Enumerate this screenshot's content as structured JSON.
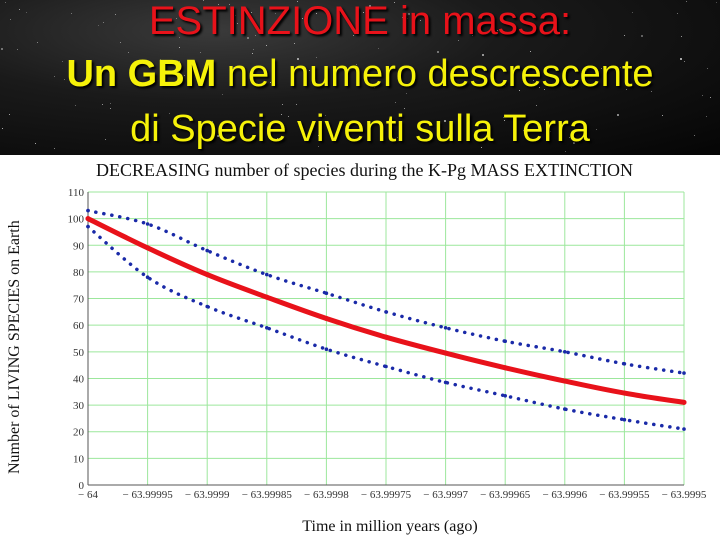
{
  "slide": {
    "title_line1": "ESTINZIONE in massa:",
    "title_line2_bold": "Un GBM",
    "title_line2_rest": " nel numero descrescente",
    "title_line3": "di Specie viventi sulla Terra",
    "colors": {
      "title_red": "#e8121a",
      "title_yellow": "#f6f209",
      "background": "#000000"
    }
  },
  "chart_data": {
    "type": "line",
    "title": "DECREASING number of species during the K-Pg MASS EXTINCTION",
    "xlabel": "Time in million years (ago)",
    "ylabel": "Number of LIVING SPECIES on Earth",
    "xlim": [
      -64,
      -63.9995
    ],
    "ylim": [
      0,
      110
    ],
    "y_ticks": [
      0,
      10,
      20,
      30,
      40,
      50,
      60,
      70,
      80,
      90,
      100,
      110
    ],
    "x_tick_labels": [
      "− 64",
      "− 63.99995",
      "− 63.9999",
      "− 63.99985",
      "− 63.9998",
      "− 63.99975",
      "− 63.9997",
      "− 63.99965",
      "− 63.9996",
      "− 63.99955",
      "− 63.9995"
    ],
    "grid": true,
    "grid_color": "#9ce79c",
    "series": [
      {
        "style": "solid",
        "color": "#e8121a",
        "x": [
          -64,
          -63.99995,
          -63.9999,
          -63.99985,
          -63.9998,
          -63.99975,
          -63.9997,
          -63.99965,
          -63.9996,
          -63.99955,
          -63.9995
        ],
        "values": [
          100,
          89,
          79,
          70.5,
          62.5,
          55.5,
          49.5,
          44,
          39,
          34.5,
          31
        ]
      },
      {
        "style": "dotted",
        "color": "#1a2aa8",
        "x": [
          -64,
          -63.99995,
          -63.9999,
          -63.99985,
          -63.9998,
          -63.99975,
          -63.9997,
          -63.99965,
          -63.9996,
          -63.99955,
          -63.9995
        ],
        "values": [
          103,
          98,
          88,
          79,
          72,
          65,
          59,
          54,
          50,
          45.5,
          42
        ]
      },
      {
        "style": "dotted",
        "color": "#1a2aa8",
        "x": [
          -64,
          -63.99995,
          -63.9999,
          -63.99985,
          -63.9998,
          -63.99975,
          -63.9997,
          -63.99965,
          -63.9996,
          -63.99955,
          -63.9995
        ],
        "values": [
          97,
          78,
          67,
          59,
          51,
          44.5,
          38.5,
          33.5,
          28.5,
          24.5,
          21
        ]
      }
    ]
  }
}
